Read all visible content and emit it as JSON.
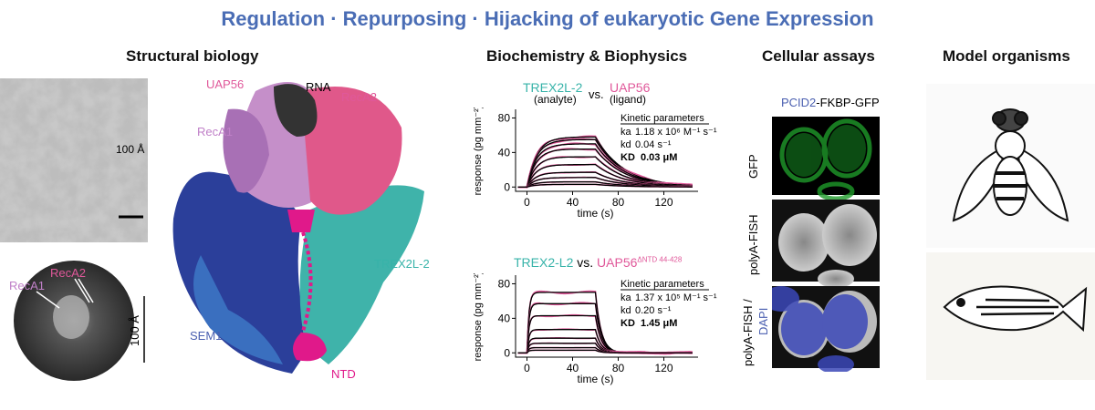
{
  "title": "Regulation · Repurposing · Hijacking of eukaryotic Gene Expression",
  "sections": {
    "structural": "Structural biology",
    "biochem": "Biochemistry & Biophysics",
    "cellular": "Cellular assays",
    "model": "Model organisms"
  },
  "structural": {
    "scale_tomo": "100 Å",
    "recA1_2d": "RecA1",
    "recA2_2d": "RecA2",
    "scale_2d": "100 Å",
    "labels": {
      "uap56": "UAP56",
      "rna": "RNA",
      "recA2": "RecA2",
      "recA1": "RecA1",
      "trex": "TREX2L-2",
      "sem1": "SEM1",
      "ntd": "NTD"
    }
  },
  "colors": {
    "title": "#4a6db5",
    "trex": "#37b3a9",
    "uap56": "#e0589a",
    "data": "#e0589a",
    "fit": "#000000",
    "recA1": "#c080c8",
    "recA2": "#e0588a",
    "sem1": "#2b3f9a",
    "ntd": "#e0198a"
  },
  "chart_data": [
    {
      "type": "line",
      "title_a": "TREX2L-2",
      "title_a_sub": "(analyte)",
      "vs": "vs.",
      "title_b": "UAP56",
      "title_b_sub": "(ligand)",
      "xlabel": "time (s)",
      "ylabel": "response (pg mm⁻²)",
      "xlim": [
        -10,
        150
      ],
      "ylim": [
        -5,
        90
      ],
      "xticks": [
        0,
        40,
        80,
        120
      ],
      "yticks": [
        0,
        40,
        80
      ],
      "injection_end": 60,
      "kobs": 0.12,
      "koff": 0.04,
      "plateaus": [
        58,
        55,
        50,
        44,
        35,
        26,
        17,
        11,
        6,
        3
      ],
      "kinetics": {
        "header": "Kinetic parameters",
        "ka_label": "ka",
        "ka": "1.18 x 10⁶ M⁻¹ s⁻¹",
        "kd_label": "kd",
        "kd": "0.04 s⁻¹",
        "KD_label": "KD",
        "KD": "0.03 μM"
      }
    },
    {
      "type": "line",
      "title_a": "TREX2-L2",
      "vs": "vs.",
      "title_b": "UAP56",
      "title_b_sup": "ΔNTD 44-428",
      "xlabel": "time (s)",
      "ylabel": "response (pg mm⁻²)",
      "xlim": [
        -10,
        150
      ],
      "ylim": [
        -5,
        90
      ],
      "xticks": [
        0,
        40,
        80,
        120
      ],
      "yticks": [
        0,
        40,
        80
      ],
      "injection_end": 60,
      "kobs": 0.6,
      "koff": 0.2,
      "plateaus": [
        70,
        57,
        43,
        27,
        17,
        11,
        6,
        3
      ],
      "kinetics": {
        "header": "Kinetic parameters",
        "ka_label": "ka",
        "ka": "1.37 x 10⁵ M⁻¹ s⁻¹",
        "kd_label": "kd",
        "kd": "0.20 s⁻¹",
        "KD_label": "KD",
        "KD": "1.45 μM"
      }
    }
  ],
  "cellular": {
    "construct_a": "PCID2",
    "construct_b": "-FKBP-GFP",
    "row1": "GFP",
    "row2": "polyA-FISH",
    "row3a": "polyA-FISH /",
    "row3b": "DAPI"
  }
}
